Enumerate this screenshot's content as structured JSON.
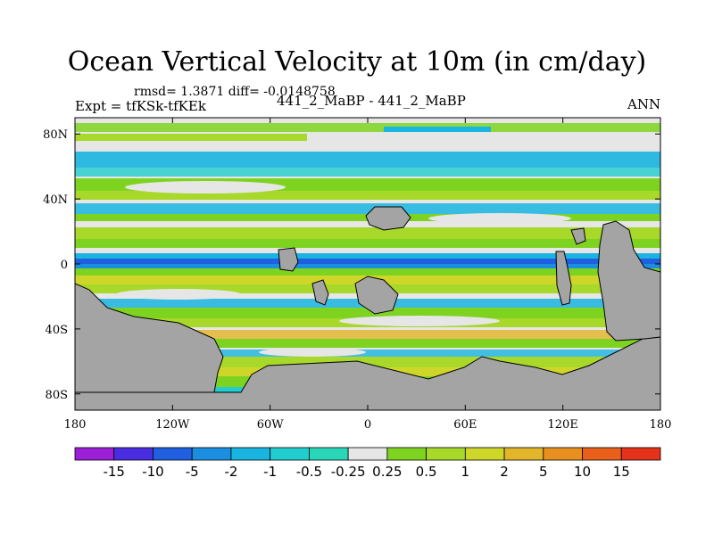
{
  "title": "Ocean Vertical Velocity at 10m (in cm/day)",
  "stats": "rmsd= 1.3871 diff= -0.0148758",
  "case_label": "441_2_MaBP - 441_2_MaBP",
  "expt_label": "Expt = tfKSk-tfKEk",
  "season_label": "ANN",
  "colors": {
    "land": "#a4a4a4",
    "neutral": "#e6e6e6",
    "levels": [
      "#9a1fd6",
      "#4a2de0",
      "#1f5fe0",
      "#1a8fe0",
      "#19b4e0",
      "#22cdd0",
      "#2ad6b8",
      "#e6e6e6",
      "#7ed321",
      "#a8d82a",
      "#cfd62a",
      "#e3b52a",
      "#e8901f",
      "#e8601a",
      "#e5321a"
    ]
  },
  "chart_data": {
    "type": "heatmap",
    "title": "Ocean Vertical Velocity at 10m (in cm/day)",
    "x_ticks": [
      "180",
      "120W",
      "60W",
      "0",
      "60E",
      "120E",
      "180"
    ],
    "y_ticks": [
      "80N",
      "40N",
      "0",
      "40S",
      "80S"
    ],
    "x_range": [
      -180,
      180
    ],
    "y_range": [
      -90,
      90
    ],
    "colorbar_labels": [
      "-15",
      "-10",
      "-5",
      "-2",
      "-1",
      "-0.5",
      "-0.25",
      "0.25",
      "0.5",
      "1",
      "2",
      "5",
      "10",
      "15"
    ],
    "units": "cm/day"
  }
}
